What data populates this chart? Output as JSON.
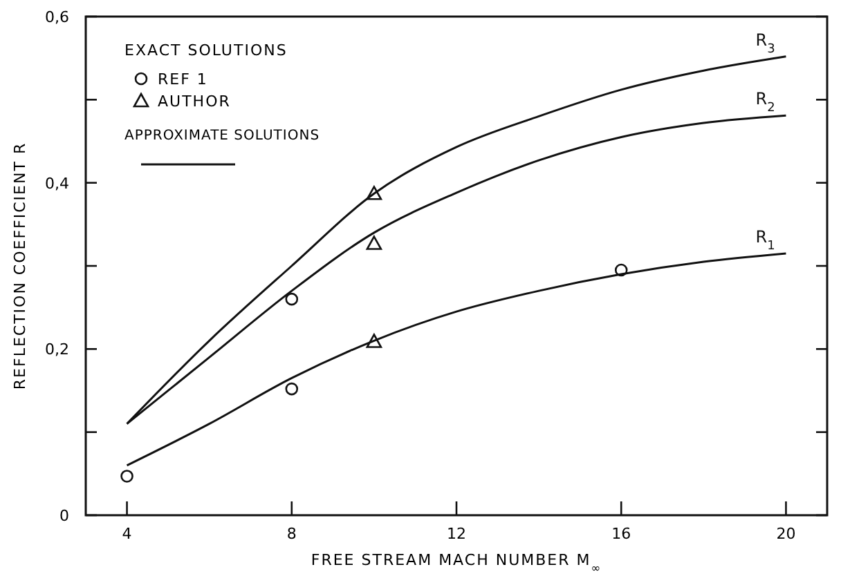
{
  "chart_data": {
    "type": "line",
    "xlabel": "FREE  STREAM  MACH  NUMBER  M$_{∞}$",
    "ylabel": "REFLECTION  COEFFICIENT  R",
    "legend_title": "EXACT  SOLUTIONS",
    "annotations": [
      "APPROXIMATE  SOLUTIONS"
    ],
    "xlim": [
      3,
      21
    ],
    "xticks": [
      4,
      8,
      12,
      16,
      20
    ],
    "ylim": [
      0,
      0.6
    ],
    "yticks": [
      {
        "value": 0,
        "label": "0"
      },
      {
        "value": 0.1,
        "label": null
      },
      {
        "value": 0.2,
        "label": "0,2"
      },
      {
        "value": 0.3,
        "label": null
      },
      {
        "value": 0.4,
        "label": "0,4"
      },
      {
        "value": 0.5,
        "label": null
      },
      {
        "value": 0.6,
        "label": "0,6"
      }
    ],
    "legend": "top left",
    "grid": false,
    "series": [
      {
        "name": "R$_{1}$",
        "color": "#111111",
        "marker": "none",
        "x": [
          4,
          6,
          8,
          10,
          12,
          14,
          16,
          18,
          20
        ],
        "values": [
          0.06,
          0.11,
          0.165,
          0.21,
          0.245,
          0.27,
          0.29,
          0.305,
          0.315
        ]
      },
      {
        "name": "R$_{2}$",
        "color": "#111111",
        "marker": "none",
        "x": [
          4,
          6,
          8,
          10,
          12,
          14,
          16,
          18,
          20
        ],
        "values": [
          0.11,
          0.19,
          0.27,
          0.34,
          0.388,
          0.427,
          0.455,
          0.472,
          0.481
        ]
      },
      {
        "name": "R$_{3}$",
        "color": "#111111",
        "marker": "none",
        "x": [
          4,
          6,
          8,
          10,
          12,
          14,
          16,
          18,
          20
        ],
        "values": [
          0.11,
          0.21,
          0.3,
          0.387,
          0.443,
          0.48,
          0.512,
          0.535,
          0.552
        ]
      },
      {
        "name": "REF 1",
        "type": "scatter",
        "color": "#111111",
        "marker": "circle",
        "x": [
          4,
          8,
          8,
          16
        ],
        "values": [
          0.047,
          0.152,
          0.26,
          0.295
        ]
      },
      {
        "name": "AUTHOR",
        "type": "scatter",
        "color": "#111111",
        "marker": "triangle",
        "x": [
          10,
          10,
          10
        ],
        "values": [
          0.209,
          0.327,
          0.387
        ]
      }
    ]
  }
}
